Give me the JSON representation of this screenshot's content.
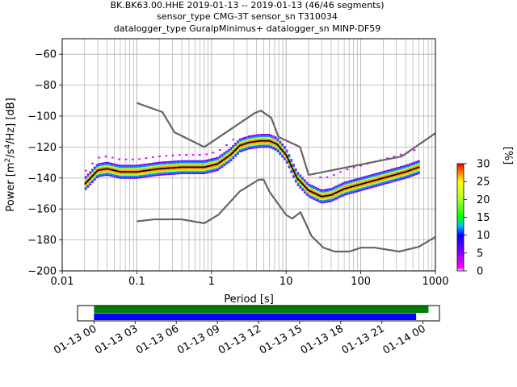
{
  "figure": {
    "title_lines": [
      "BK.BK63.00.HHE   2019-01-13 -- 2019-01-13  (46/46 segments)",
      "sensor_type CMG-3T sensor_sn T310034",
      "datalogger_type GuralpMinimus+ datalogger_sn MINP-DF59"
    ]
  },
  "chart_data": [
    {
      "type": "heatmap",
      "title": "BK.BK63.00.HHE   2019-01-13 -- 2019-01-13  (46/46 segments)",
      "xlabel": "Period [s]",
      "ylabel": "Power [m²/s⁴/Hz] [dB]",
      "x_scale": "log",
      "xlim": [
        0.01,
        1000
      ],
      "ylim": [
        -200,
        -50
      ],
      "x_ticks": [
        0.01,
        0.1,
        1,
        10,
        100,
        1000
      ],
      "x_tick_labels": [
        "0.01",
        "0.1",
        "1",
        "10",
        "100",
        "1000"
      ],
      "y_ticks": [
        -200,
        -180,
        -160,
        -140,
        -120,
        -100,
        -80,
        -60
      ],
      "y_tick_labels": [
        "−200",
        "−180",
        "−160",
        "−140",
        "−120",
        "−100",
        "−80",
        "−60"
      ],
      "grid": true,
      "colorbar": {
        "label": "[%]",
        "range": [
          0,
          30
        ],
        "ticks": [
          0,
          5,
          10,
          15,
          20,
          25,
          30
        ]
      },
      "series": [
        {
          "name": "",
          "kind": "noise-model-high",
          "color": "#666666",
          "points": [
            [
              0.1,
              -91.5
            ],
            [
              0.22,
              -97.4
            ],
            [
              0.32,
              -110.5
            ],
            [
              0.8,
              -120
            ],
            [
              3.8,
              -98
            ],
            [
              4.6,
              -96.5
            ],
            [
              6.3,
              -101
            ],
            [
              7.9,
              -113.5
            ],
            [
              15.4,
              -120
            ],
            [
              20,
              -138
            ],
            [
              354.8,
              -126
            ],
            [
              1000,
              -111
            ]
          ]
        },
        {
          "name": "",
          "kind": "noise-model-low",
          "color": "#666666",
          "points": [
            [
              0.1,
              -168
            ],
            [
              0.17,
              -166.7
            ],
            [
              0.4,
              -166.7
            ],
            [
              0.8,
              -169.2
            ],
            [
              1.24,
              -163.7
            ],
            [
              2.4,
              -148.6
            ],
            [
              4.3,
              -141.1
            ],
            [
              5,
              -141.1
            ],
            [
              6,
              -149
            ],
            [
              10,
              -163.8
            ],
            [
              12,
              -166.2
            ],
            [
              15.6,
              -162.1
            ],
            [
              21.9,
              -177.5
            ],
            [
              31.6,
              -185
            ],
            [
              45,
              -187.5
            ],
            [
              70,
              -187.5
            ],
            [
              101,
              -185
            ],
            [
              154,
              -185
            ],
            [
              328,
              -187.5
            ],
            [
              600,
              -184.4
            ],
            [
              1000,
              -178
            ]
          ]
        },
        {
          "name": "",
          "kind": "mode",
          "color": "#000000",
          "points": [
            [
              0.02,
              -144
            ],
            [
              0.03,
              -135
            ],
            [
              0.04,
              -134
            ],
            [
              0.06,
              -136
            ],
            [
              0.1,
              -136
            ],
            [
              0.2,
              -134
            ],
            [
              0.4,
              -133
            ],
            [
              0.8,
              -133
            ],
            [
              1.2,
              -131
            ],
            [
              1.8,
              -125
            ],
            [
              2.4,
              -119
            ],
            [
              3.2,
              -117
            ],
            [
              4.5,
              -116
            ],
            [
              6,
              -116
            ],
            [
              7.5,
              -118
            ],
            [
              10,
              -125
            ],
            [
              14,
              -140
            ],
            [
              20,
              -148
            ],
            [
              30,
              -152
            ],
            [
              40,
              -151
            ],
            [
              60,
              -147
            ],
            [
              100,
              -144
            ],
            [
              200,
              -140
            ],
            [
              400,
              -136
            ],
            [
              600,
              -133
            ]
          ]
        }
      ]
    },
    {
      "type": "timeline",
      "x_tick_labels": [
        "01-13 00",
        "01-13 03",
        "01-13 06",
        "01-13 09",
        "01-13 12",
        "01-13 15",
        "01-13 18",
        "01-13 21",
        "01-14 00"
      ],
      "xlim_hours": [
        -1.2,
        25.2
      ],
      "bars": [
        {
          "start_h": 0,
          "end_h": 24.4,
          "color": "#008000"
        },
        {
          "start_h": 0,
          "end_h": 23.5,
          "color": "#0000ff"
        }
      ]
    }
  ]
}
